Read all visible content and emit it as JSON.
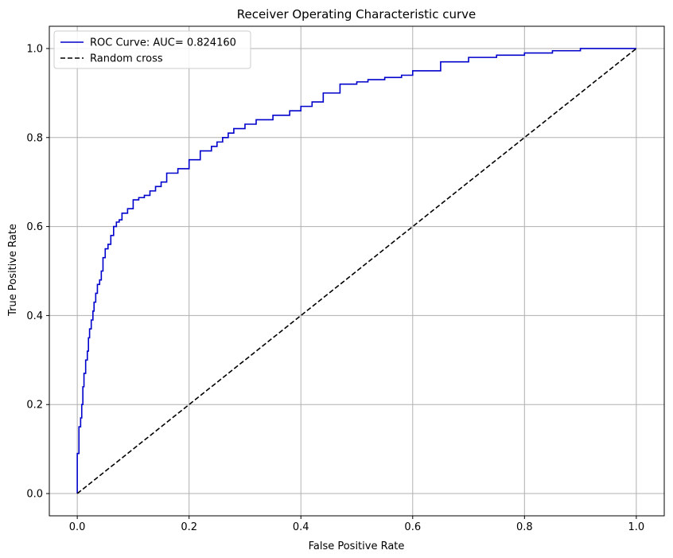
{
  "chart_data": {
    "type": "line",
    "title": "Receiver Operating Characteristic curve",
    "xlabel": "False Positive Rate",
    "ylabel": "True Positive Rate",
    "xlim": [
      -0.05,
      1.05
    ],
    "ylim": [
      -0.05,
      1.05
    ],
    "xticks": [
      0.0,
      0.2,
      0.4,
      0.6,
      0.8,
      1.0
    ],
    "yticks": [
      0.0,
      0.2,
      0.4,
      0.6,
      0.8,
      1.0
    ],
    "xtick_labels": [
      "0.0",
      "0.2",
      "0.4",
      "0.6",
      "0.8",
      "1.0"
    ],
    "ytick_labels": [
      "0.0",
      "0.2",
      "0.4",
      "0.6",
      "0.8",
      "1.0"
    ],
    "grid": true,
    "legend_position": "upper-left",
    "series": [
      {
        "name": "ROC Curve: AUC= 0.824160",
        "color": "#0000cc",
        "style": "solid",
        "x": [
          0.0,
          0.0,
          0.003,
          0.006,
          0.008,
          0.01,
          0.012,
          0.015,
          0.018,
          0.02,
          0.022,
          0.025,
          0.028,
          0.03,
          0.033,
          0.036,
          0.04,
          0.043,
          0.046,
          0.05,
          0.055,
          0.06,
          0.065,
          0.07,
          0.075,
          0.08,
          0.09,
          0.1,
          0.11,
          0.12,
          0.13,
          0.14,
          0.15,
          0.16,
          0.18,
          0.2,
          0.22,
          0.24,
          0.25,
          0.26,
          0.27,
          0.28,
          0.3,
          0.32,
          0.35,
          0.38,
          0.4,
          0.42,
          0.44,
          0.47,
          0.5,
          0.52,
          0.55,
          0.58,
          0.6,
          0.65,
          0.7,
          0.75,
          0.8,
          0.85,
          0.9,
          0.95,
          1.0
        ],
        "y": [
          0.0,
          0.08,
          0.09,
          0.15,
          0.17,
          0.2,
          0.24,
          0.27,
          0.3,
          0.32,
          0.35,
          0.37,
          0.39,
          0.41,
          0.43,
          0.45,
          0.47,
          0.48,
          0.5,
          0.53,
          0.55,
          0.56,
          0.58,
          0.6,
          0.61,
          0.615,
          0.63,
          0.64,
          0.66,
          0.665,
          0.67,
          0.68,
          0.69,
          0.7,
          0.72,
          0.73,
          0.75,
          0.77,
          0.78,
          0.79,
          0.8,
          0.81,
          0.82,
          0.83,
          0.84,
          0.85,
          0.86,
          0.87,
          0.88,
          0.9,
          0.92,
          0.925,
          0.93,
          0.935,
          0.94,
          0.95,
          0.97,
          0.98,
          0.985,
          0.99,
          0.995,
          1.0,
          1.0
        ]
      },
      {
        "name": "Random cross",
        "color": "#000000",
        "style": "dashed",
        "x": [
          0.0,
          1.0
        ],
        "y": [
          0.0,
          1.0
        ]
      }
    ]
  }
}
